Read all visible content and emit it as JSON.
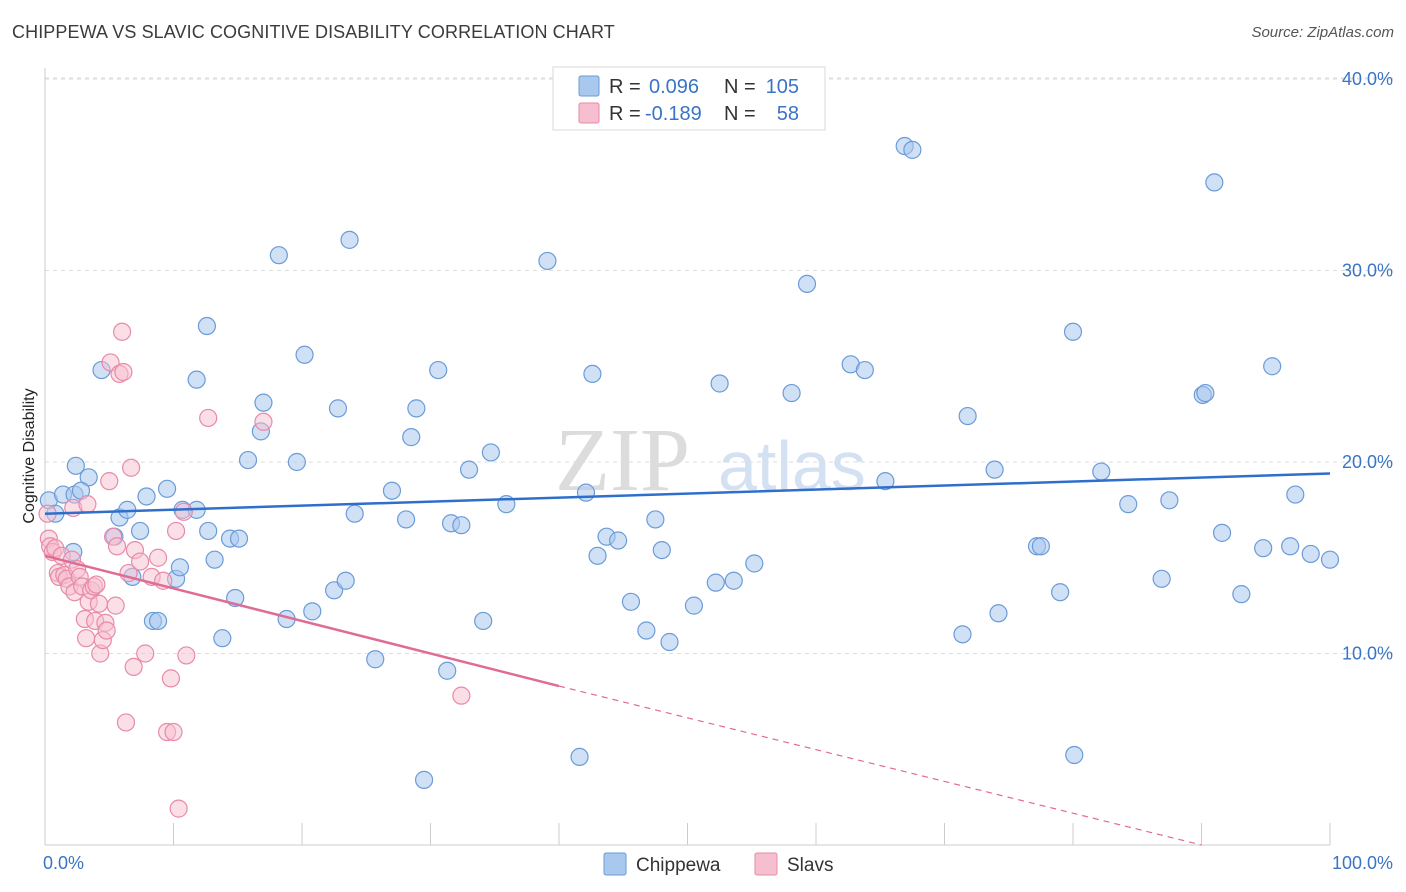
{
  "title": "CHIPPEWA VS SLAVIC COGNITIVE DISABILITY CORRELATION CHART",
  "source": "Source: ZipAtlas.com",
  "watermark": {
    "zip": "ZIP",
    "atlas": "atlas"
  },
  "colors": {
    "chippewa_fill": "#a9c8ee",
    "chippewa_stroke": "#6b9bd8",
    "chippewa_line": "#2f6fcc",
    "slavs_fill": "#f6bfd0",
    "slavs_stroke": "#e88aa8",
    "slavs_line": "#e06b94",
    "tick_label": "#3a74c6",
    "grid": "#dddddd"
  },
  "legend": {
    "rows": [
      {
        "r_label": "R =",
        "r_value": "0.096",
        "n_label": "N =",
        "n_value": "105"
      },
      {
        "r_label": "R =",
        "r_value": "-0.189",
        "n_label": "N =",
        "n_value": "58"
      }
    ]
  },
  "chart_data": {
    "type": "scatter",
    "title": "CHIPPEWA VS SLAVIC COGNITIVE DISABILITY CORRELATION CHART",
    "xlabel": "",
    "ylabel": "Cognitive Disability",
    "xlim": [
      0,
      100
    ],
    "ylim": [
      0,
      40
    ],
    "x_tick_labels": [
      "0.0%",
      "100.0%"
    ],
    "y_ticks": [
      10,
      20,
      30,
      40
    ],
    "y_tick_labels": [
      "10.0%",
      "20.0%",
      "30.0%",
      "40.0%"
    ],
    "grid": true,
    "series": [
      {
        "name": "Chippewa",
        "r": 0.096,
        "n": 105,
        "trend": {
          "x0": 0,
          "y0": 17.3,
          "x1": 100,
          "y1": 19.4
        },
        "points": [
          [
            0.3,
            18.0
          ],
          [
            0.8,
            17.3
          ],
          [
            1.4,
            18.3
          ],
          [
            2.3,
            18.3
          ],
          [
            2.2,
            15.3
          ],
          [
            2.4,
            19.8
          ],
          [
            3.4,
            19.2
          ],
          [
            2.8,
            18.5
          ],
          [
            4.4,
            24.8
          ],
          [
            5.4,
            16.1
          ],
          [
            5.8,
            17.1
          ],
          [
            6.4,
            17.5
          ],
          [
            6.8,
            14.0
          ],
          [
            7.4,
            16.4
          ],
          [
            7.9,
            18.2
          ],
          [
            8.4,
            11.7
          ],
          [
            8.8,
            11.7
          ],
          [
            9.5,
            18.6
          ],
          [
            10.2,
            13.9
          ],
          [
            10.5,
            14.5
          ],
          [
            10.7,
            17.5
          ],
          [
            11.8,
            17.5
          ],
          [
            11.8,
            24.3
          ],
          [
            12.6,
            27.1
          ],
          [
            12.7,
            16.4
          ],
          [
            13.2,
            14.9
          ],
          [
            13.8,
            10.8
          ],
          [
            14.4,
            16.0
          ],
          [
            14.8,
            12.9
          ],
          [
            15.1,
            16.0
          ],
          [
            15.8,
            20.1
          ],
          [
            16.8,
            21.6
          ],
          [
            17.0,
            23.1
          ],
          [
            18.2,
            30.8
          ],
          [
            18.8,
            11.8
          ],
          [
            19.6,
            20.0
          ],
          [
            20.2,
            25.6
          ],
          [
            20.8,
            12.2
          ],
          [
            22.5,
            13.3
          ],
          [
            22.8,
            22.8
          ],
          [
            23.4,
            13.8
          ],
          [
            23.7,
            31.6
          ],
          [
            24.1,
            17.3
          ],
          [
            25.7,
            9.7
          ],
          [
            27.0,
            18.5
          ],
          [
            28.1,
            17.0
          ],
          [
            28.5,
            21.3
          ],
          [
            28.9,
            22.8
          ],
          [
            29.5,
            3.4
          ],
          [
            30.6,
            24.8
          ],
          [
            31.3,
            9.1
          ],
          [
            31.6,
            16.8
          ],
          [
            32.4,
            16.7
          ],
          [
            33.0,
            19.6
          ],
          [
            34.1,
            11.7
          ],
          [
            34.7,
            20.5
          ],
          [
            35.9,
            17.8
          ],
          [
            39.1,
            30.5
          ],
          [
            41.6,
            4.6
          ],
          [
            42.1,
            18.4
          ],
          [
            42.6,
            24.6
          ],
          [
            43.0,
            15.1
          ],
          [
            43.7,
            16.1
          ],
          [
            44.6,
            15.9
          ],
          [
            45.6,
            12.7
          ],
          [
            46.8,
            11.2
          ],
          [
            47.5,
            17.0
          ],
          [
            48.0,
            15.4
          ],
          [
            48.6,
            10.6
          ],
          [
            50.5,
            12.5
          ],
          [
            52.2,
            13.7
          ],
          [
            52.5,
            24.1
          ],
          [
            53.6,
            13.8
          ],
          [
            55.2,
            14.7
          ],
          [
            58.1,
            23.6
          ],
          [
            59.3,
            29.3
          ],
          [
            62.7,
            25.1
          ],
          [
            63.8,
            24.8
          ],
          [
            65.4,
            19.0
          ],
          [
            66.9,
            36.5
          ],
          [
            67.5,
            36.3
          ],
          [
            71.4,
            11.0
          ],
          [
            71.8,
            22.4
          ],
          [
            73.9,
            19.6
          ],
          [
            74.2,
            12.1
          ],
          [
            77.2,
            15.6
          ],
          [
            77.5,
            15.6
          ],
          [
            79.0,
            13.2
          ],
          [
            80.0,
            26.8
          ],
          [
            80.1,
            4.7
          ],
          [
            82.2,
            19.5
          ],
          [
            84.3,
            17.8
          ],
          [
            86.9,
            13.9
          ],
          [
            87.5,
            18.0
          ],
          [
            90.1,
            23.5
          ],
          [
            90.3,
            23.6
          ],
          [
            91.0,
            34.6
          ],
          [
            91.6,
            16.3
          ],
          [
            93.1,
            13.1
          ],
          [
            94.8,
            15.5
          ],
          [
            95.5,
            25.0
          ],
          [
            96.9,
            15.6
          ],
          [
            97.3,
            18.3
          ],
          [
            98.5,
            15.2
          ],
          [
            100.0,
            14.9
          ]
        ]
      },
      {
        "name": "Slavs",
        "r": -0.189,
        "n": 58,
        "trend": {
          "x0": 0,
          "y0": 15.1,
          "x1": 40,
          "y1": 8.3,
          "dash_x1": 90,
          "dash_y1": 0
        },
        "points": [
          [
            0.2,
            17.3
          ],
          [
            0.3,
            16.0
          ],
          [
            0.4,
            15.6
          ],
          [
            0.6,
            15.3
          ],
          [
            0.8,
            15.5
          ],
          [
            1.0,
            14.2
          ],
          [
            1.1,
            14.0
          ],
          [
            1.3,
            15.1
          ],
          [
            1.5,
            14.1
          ],
          [
            1.7,
            13.9
          ],
          [
            1.9,
            13.5
          ],
          [
            2.1,
            14.9
          ],
          [
            2.2,
            17.6
          ],
          [
            2.3,
            13.2
          ],
          [
            2.5,
            14.4
          ],
          [
            2.7,
            14.0
          ],
          [
            2.9,
            13.5
          ],
          [
            3.1,
            11.8
          ],
          [
            3.2,
            10.8
          ],
          [
            3.3,
            17.8
          ],
          [
            3.4,
            12.7
          ],
          [
            3.6,
            13.3
          ],
          [
            3.8,
            13.5
          ],
          [
            3.9,
            11.7
          ],
          [
            4.0,
            13.6
          ],
          [
            4.2,
            12.6
          ],
          [
            4.3,
            10.0
          ],
          [
            4.5,
            10.7
          ],
          [
            4.7,
            11.6
          ],
          [
            4.8,
            11.2
          ],
          [
            5.0,
            19.0
          ],
          [
            5.1,
            25.2
          ],
          [
            5.3,
            16.1
          ],
          [
            5.5,
            12.5
          ],
          [
            5.6,
            15.6
          ],
          [
            5.8,
            24.6
          ],
          [
            6.0,
            26.8
          ],
          [
            6.1,
            24.7
          ],
          [
            6.3,
            6.4
          ],
          [
            6.5,
            14.2
          ],
          [
            6.7,
            19.7
          ],
          [
            6.9,
            9.3
          ],
          [
            7.0,
            15.4
          ],
          [
            7.4,
            14.8
          ],
          [
            7.8,
            10.0
          ],
          [
            8.3,
            14.0
          ],
          [
            8.8,
            15.0
          ],
          [
            9.2,
            13.8
          ],
          [
            9.5,
            5.9
          ],
          [
            9.8,
            8.7
          ],
          [
            10.0,
            5.9
          ],
          [
            10.2,
            16.4
          ],
          [
            10.4,
            1.9
          ],
          [
            10.8,
            17.4
          ],
          [
            11.0,
            9.9
          ],
          [
            12.7,
            22.3
          ],
          [
            17.0,
            22.1
          ],
          [
            32.4,
            7.8
          ]
        ]
      }
    ]
  },
  "bottom_legend": {
    "chippewa": "Chippewa",
    "slavs": "Slavs"
  }
}
